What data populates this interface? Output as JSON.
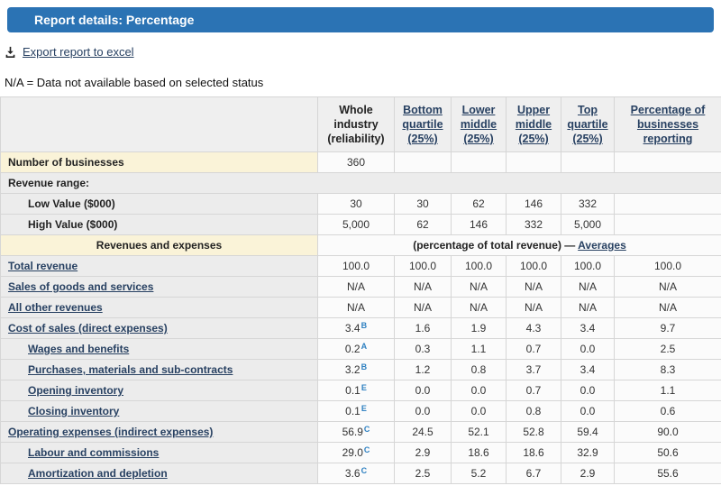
{
  "header": {
    "title": "Report details: Percentage"
  },
  "toolbar": {
    "export_label": "Export report to excel",
    "export_icon": "download-icon"
  },
  "note": "N/A = Data not available based on selected status",
  "colors": {
    "titlebar_bg": "#2b73b4",
    "link_navy": "#284162",
    "superscript_blue": "#2e80c1",
    "band_yellow": "#faf3d8",
    "band_gray": "#ececec"
  },
  "table": {
    "columns": [
      {
        "name": "row-label",
        "label": "",
        "link": false
      },
      {
        "name": "whole-industry",
        "label": "Whole industry (reliability)",
        "link": false
      },
      {
        "name": "bottom-quartile",
        "label": "Bottom quartile (25%)",
        "link": true
      },
      {
        "name": "lower-middle",
        "label": "Lower middle (25%)",
        "link": true
      },
      {
        "name": "upper-middle",
        "label": "Upper middle (25%)",
        "link": true
      },
      {
        "name": "top-quartile",
        "label": "Top quartile (25%)",
        "link": true
      },
      {
        "name": "pct-businesses-reporting",
        "label": "Percentage of businesses reporting",
        "link": true
      }
    ],
    "rows": [
      {
        "type": "data",
        "band": "yellow",
        "indent": 0,
        "link": false,
        "label": "Number of businesses",
        "cells": [
          "360",
          "",
          "",
          "",
          "",
          ""
        ]
      },
      {
        "type": "section",
        "label": "Revenue range:"
      },
      {
        "type": "data",
        "band": "gray",
        "indent": 1,
        "link": false,
        "label": "Low Value ($000)",
        "cells": [
          "30",
          "30",
          "62",
          "146",
          "332",
          ""
        ]
      },
      {
        "type": "data",
        "band": "gray",
        "indent": 1,
        "link": false,
        "label": "High Value ($000)",
        "cells": [
          "5,000",
          "62",
          "146",
          "332",
          "5,000",
          ""
        ]
      },
      {
        "type": "span",
        "band": "yellow",
        "label": "Revenues and expenses",
        "note_prefix": "(percentage of total revenue) — ",
        "note_link": "Averages"
      },
      {
        "type": "data",
        "band": "gray",
        "indent": 0,
        "link": true,
        "label": "Total revenue",
        "cells": [
          "100.0",
          "100.0",
          "100.0",
          "100.0",
          "100.0",
          "100.0"
        ]
      },
      {
        "type": "data",
        "band": "gray",
        "indent": 0,
        "link": true,
        "label": "Sales of goods and services",
        "cells": [
          "N/A",
          "N/A",
          "N/A",
          "N/A",
          "N/A",
          "N/A"
        ]
      },
      {
        "type": "data",
        "band": "gray",
        "indent": 0,
        "link": true,
        "label": "All other revenues",
        "cells": [
          "N/A",
          "N/A",
          "N/A",
          "N/A",
          "N/A",
          "N/A"
        ]
      },
      {
        "type": "data",
        "band": "gray",
        "indent": 0,
        "link": true,
        "label": "Cost of sales (direct expenses)",
        "cells": [
          {
            "v": "3.4",
            "sup": "B"
          },
          "1.6",
          "1.9",
          "4.3",
          "3.4",
          "9.7"
        ]
      },
      {
        "type": "data",
        "band": "gray",
        "indent": 1,
        "link": true,
        "label": "Wages and benefits",
        "cells": [
          {
            "v": "0.2",
            "sup": "A"
          },
          "0.3",
          "1.1",
          "0.7",
          "0.0",
          "2.5"
        ]
      },
      {
        "type": "data",
        "band": "gray",
        "indent": 1,
        "link": true,
        "label": "Purchases, materials and sub-contracts",
        "cells": [
          {
            "v": "3.2",
            "sup": "B"
          },
          "1.2",
          "0.8",
          "3.7",
          "3.4",
          "8.3"
        ]
      },
      {
        "type": "data",
        "band": "gray",
        "indent": 1,
        "link": true,
        "label": "Opening inventory",
        "cells": [
          {
            "v": "0.1",
            "sup": "E"
          },
          "0.0",
          "0.0",
          "0.7",
          "0.0",
          "1.1"
        ]
      },
      {
        "type": "data",
        "band": "gray",
        "indent": 1,
        "link": true,
        "label": "Closing inventory",
        "cells": [
          {
            "v": "0.1",
            "sup": "E"
          },
          "0.0",
          "0.0",
          "0.8",
          "0.0",
          "0.6"
        ]
      },
      {
        "type": "data",
        "band": "gray",
        "indent": 0,
        "link": true,
        "label": "Operating expenses (indirect expenses)",
        "cells": [
          {
            "v": "56.9",
            "sup": "C"
          },
          "24.5",
          "52.1",
          "52.8",
          "59.4",
          "90.0"
        ]
      },
      {
        "type": "data",
        "band": "gray",
        "indent": 1,
        "link": true,
        "label": "Labour and commissions",
        "cells": [
          {
            "v": "29.0",
            "sup": "C"
          },
          "2.9",
          "18.6",
          "18.6",
          "32.9",
          "50.6"
        ]
      },
      {
        "type": "data",
        "band": "gray",
        "indent": 1,
        "link": true,
        "label": "Amortization and depletion",
        "cells": [
          {
            "v": "3.6",
            "sup": "C"
          },
          "2.5",
          "5.2",
          "6.7",
          "2.9",
          "55.6"
        ]
      }
    ]
  }
}
